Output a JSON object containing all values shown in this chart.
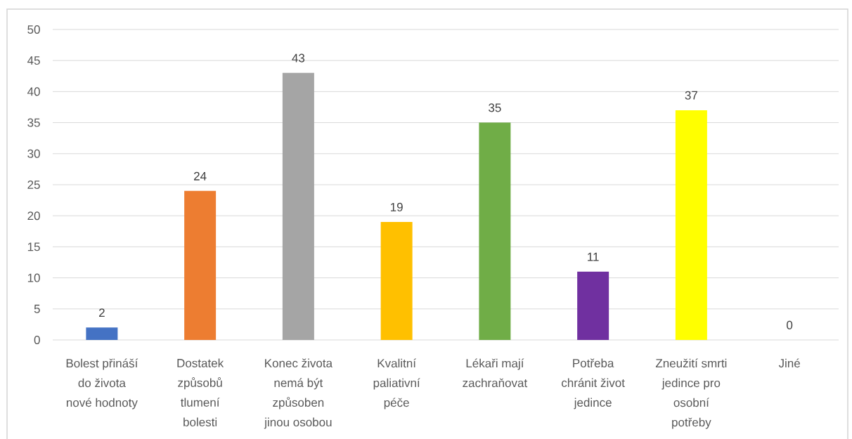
{
  "chart_data": {
    "type": "bar",
    "categories": [
      "Bolest přináší do života nové hodnoty",
      "Dostatek způsobů tlumení bolesti",
      "Konec života nemá být způsoben jinou osobou",
      "Kvalitní paliativní péče",
      "Lékaři mají zachraňovat",
      "Potřeba chránit život jedince",
      "Zneužití smrti jedince pro osobní potřeby",
      "Jiné"
    ],
    "values": [
      2,
      24,
      43,
      19,
      35,
      11,
      37,
      0
    ],
    "colors": [
      "#4472c4",
      "#ed7d31",
      "#a5a5a5",
      "#ffc000",
      "#70ad47",
      "#7030a0",
      "#ffff00",
      "#264478"
    ],
    "ylim": [
      0,
      50
    ],
    "yticks": [
      0,
      5,
      10,
      15,
      20,
      25,
      30,
      35,
      40,
      45,
      50
    ],
    "grid": "y",
    "data_labels": true
  }
}
